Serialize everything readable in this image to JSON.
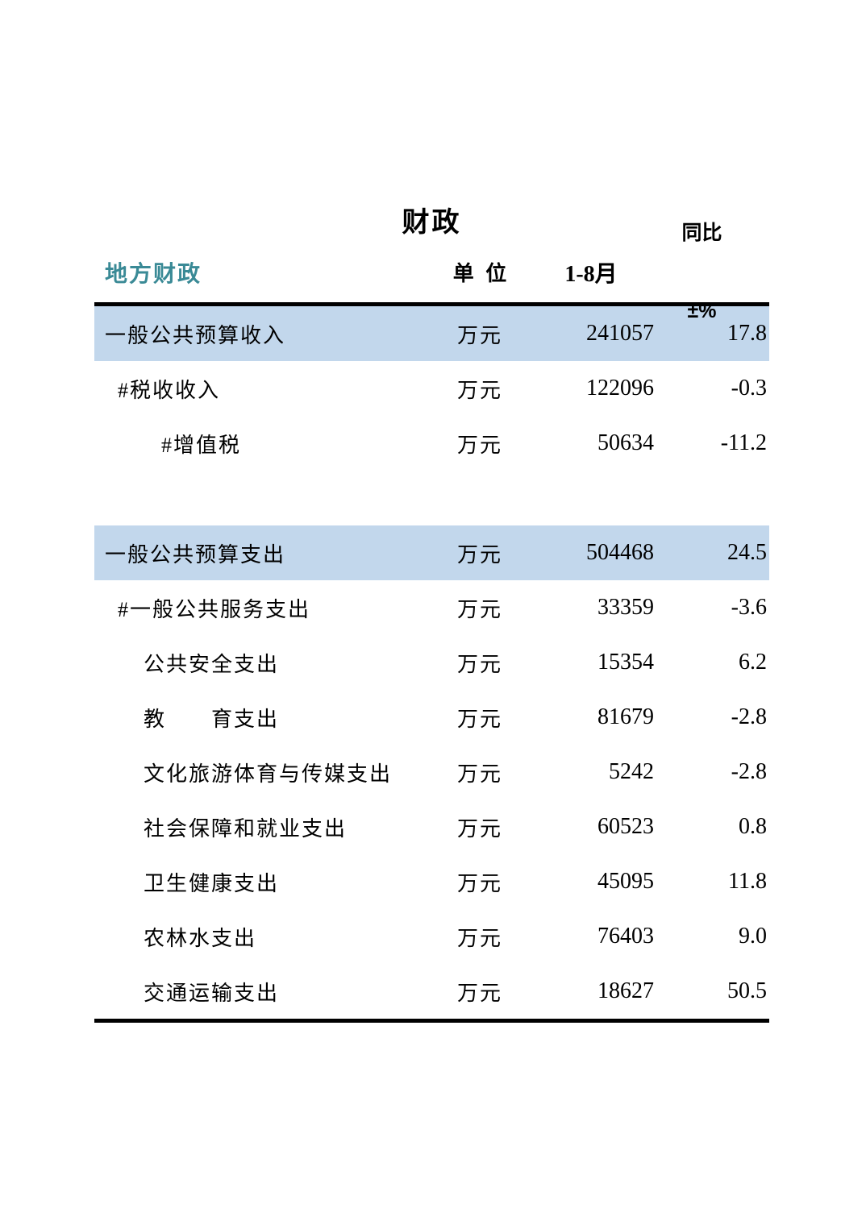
{
  "title": "财政",
  "colors": {
    "accent_teal": "#3a8a96",
    "highlight_blue": "#c2d7ec",
    "rule_black": "#000000"
  },
  "table": {
    "header": {
      "category": "地方财政",
      "unit": "单  位",
      "period": "1-8月",
      "yoy_line1": "同比",
      "yoy_line2": "±%"
    },
    "rows": [
      {
        "label": "一般公共预算收入",
        "unit": "万元",
        "value": "241057",
        "pct": "17.8",
        "indent": 0,
        "highlight": true,
        "spacer": false
      },
      {
        "label": "#税收收入",
        "unit": "万元",
        "value": "122096",
        "pct": "-0.3",
        "indent": 1,
        "highlight": false,
        "spacer": false
      },
      {
        "label": "#增值税",
        "unit": "万元",
        "value": "50634",
        "pct": "-11.2",
        "indent": 2,
        "highlight": false,
        "spacer": false
      },
      {
        "label": "",
        "unit": "",
        "value": "",
        "pct": "",
        "indent": 0,
        "highlight": false,
        "spacer": true
      },
      {
        "label": "一般公共预算支出",
        "unit": "万元",
        "value": "504468",
        "pct": "24.5",
        "indent": 0,
        "highlight": true,
        "spacer": false
      },
      {
        "label": "#一般公共服务支出",
        "unit": "万元",
        "value": "33359",
        "pct": "-3.6",
        "indent": 1,
        "highlight": false,
        "spacer": false
      },
      {
        "label": "公共安全支出",
        "unit": "万元",
        "value": "15354",
        "pct": "6.2",
        "indent": 3,
        "highlight": false,
        "spacer": false
      },
      {
        "label": "教　　育支出",
        "unit": "万元",
        "value": "81679",
        "pct": "-2.8",
        "indent": 3,
        "highlight": false,
        "spacer": false
      },
      {
        "label": "文化旅游体育与传媒支出",
        "unit": "万元",
        "value": "5242",
        "pct": "-2.8",
        "indent": 3,
        "highlight": false,
        "spacer": false
      },
      {
        "label": "社会保障和就业支出",
        "unit": "万元",
        "value": "60523",
        "pct": "0.8",
        "indent": 3,
        "highlight": false,
        "spacer": false
      },
      {
        "label": "卫生健康支出",
        "unit": "万元",
        "value": "45095",
        "pct": "11.8",
        "indent": 3,
        "highlight": false,
        "spacer": false
      },
      {
        "label": "农林水支出",
        "unit": "万元",
        "value": "76403",
        "pct": "9.0",
        "indent": 3,
        "highlight": false,
        "spacer": false
      },
      {
        "label": "交通运输支出",
        "unit": "万元",
        "value": "18627",
        "pct": "50.5",
        "indent": 3,
        "highlight": false,
        "spacer": false
      }
    ]
  }
}
